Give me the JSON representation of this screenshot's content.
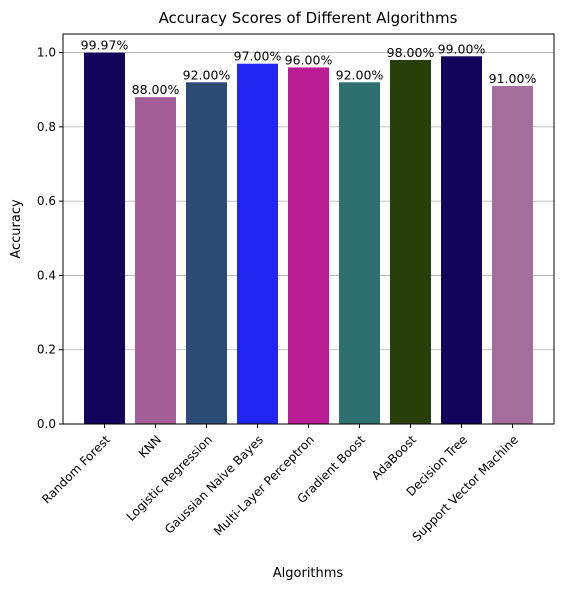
{
  "chart_data": {
    "type": "bar",
    "title": "Accuracy Scores of Different Algorithms",
    "xlabel": "Algorithms",
    "ylabel": "Accuracy",
    "categories": [
      "Random Forest",
      "KNN",
      "Logistic Regression",
      "Gaussian Naive Bayes",
      "Multi-Layer Perceptron",
      "Gradient Boost",
      "AdaBoost",
      "Decision Tree",
      "Support Vector Machine"
    ],
    "values": [
      0.9997,
      0.88,
      0.92,
      0.97,
      0.96,
      0.92,
      0.98,
      0.99,
      0.91
    ],
    "data_labels": [
      "99.97%",
      "88.00%",
      "92.00%",
      "97.00%",
      "96.00%",
      "92.00%",
      "98.00%",
      "99.00%",
      "91.00%"
    ],
    "colors": [
      "#12045a",
      "#a35e98",
      "#2c4b76",
      "#2224f2",
      "#ba1c93",
      "#2e7070",
      "#283f0a",
      "#12045a",
      "#a36e9c"
    ],
    "ylim": [
      0,
      1.05
    ],
    "yticks": [
      0.0,
      0.2,
      0.4,
      0.6,
      0.8,
      1.0
    ],
    "ytick_labels": [
      "0.0",
      "0.2",
      "0.4",
      "0.6",
      "0.8",
      "1.0"
    ],
    "grid": "y-major",
    "legend": "none"
  }
}
